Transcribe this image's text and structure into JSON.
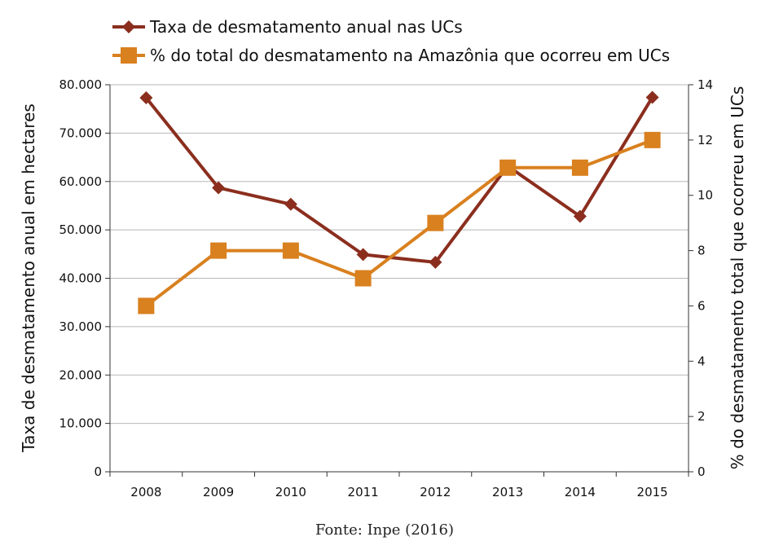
{
  "chart_data": {
    "type": "line",
    "categories": [
      "2008",
      "2009",
      "2010",
      "2011",
      "2012",
      "2013",
      "2014",
      "2015"
    ],
    "series": [
      {
        "name": "Taxa de desmatamento anual nas UCs",
        "axis": "left",
        "marker": "diamond",
        "color": "#8B2E1E",
        "values": [
          77300,
          58700,
          55300,
          44900,
          43300,
          63200,
          52800,
          77400
        ]
      },
      {
        "name": "% do total do desmatamento na Amazônia que ocorreu em UCs",
        "axis": "right",
        "marker": "square",
        "color": "#D9801F",
        "values": [
          6,
          8,
          8,
          7,
          9,
          11,
          11,
          12
        ]
      }
    ],
    "ylabel": "Taxa de desmatamento anual em hectares",
    "y2label": "% do desmatamento total que ocorreu em UCs",
    "ylim": [
      0,
      80000
    ],
    "y2lim": [
      0,
      14
    ],
    "yticks": [
      "0",
      "10.000",
      "20.000",
      "30.000",
      "40.000",
      "50.000",
      "60.000",
      "70.000",
      "80.000"
    ],
    "y2ticks": [
      "0",
      "2",
      "4",
      "6",
      "8",
      "10",
      "12",
      "14"
    ],
    "grid": true,
    "legend_position": "top-left"
  },
  "source": "Fonte: Inpe (2016)",
  "colors": {
    "grid": "#b8b8b8",
    "axis": "#333333"
  }
}
